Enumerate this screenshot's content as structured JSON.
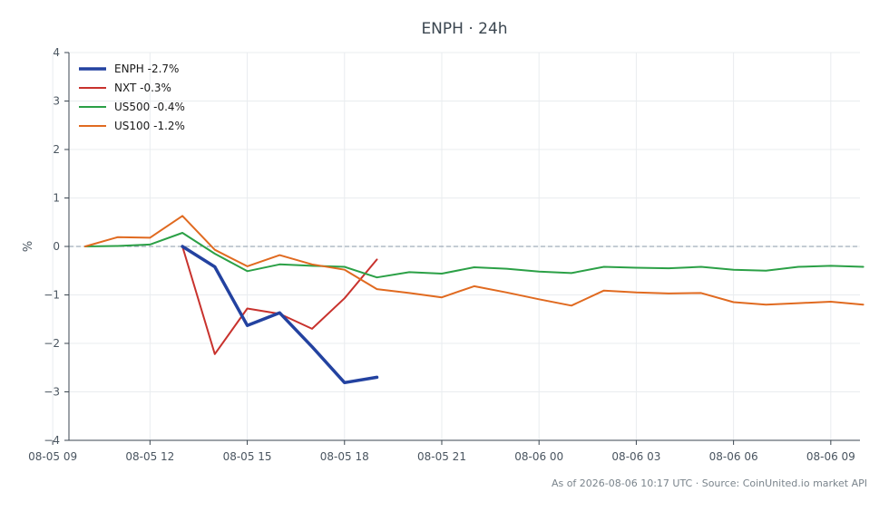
{
  "chart_data": {
    "type": "line",
    "title": "ENPH · 24h",
    "ylabel": "%",
    "xlabel": "",
    "ylim": [
      -4,
      4
    ],
    "xlim": [
      9.5,
      33.9
    ],
    "x_ticks": [
      {
        "value": 9.0,
        "label": "08-05 09"
      },
      {
        "value": 12.0,
        "label": "08-05 12"
      },
      {
        "value": 15.0,
        "label": "08-05 15"
      },
      {
        "value": 18.0,
        "label": "08-05 18"
      },
      {
        "value": 21.0,
        "label": "08-05 21"
      },
      {
        "value": 24.0,
        "label": "08-06 00"
      },
      {
        "value": 27.0,
        "label": "08-06 03"
      },
      {
        "value": 30.0,
        "label": "08-06 06"
      },
      {
        "value": 33.0,
        "label": "08-06 09"
      }
    ],
    "y_ticks": [
      {
        "value": -4,
        "label": "−4"
      },
      {
        "value": -3,
        "label": "−3"
      },
      {
        "value": -2,
        "label": "−2"
      },
      {
        "value": -1,
        "label": "−1"
      },
      {
        "value": 0,
        "label": "0"
      },
      {
        "value": 1,
        "label": "1"
      },
      {
        "value": 2,
        "label": "2"
      },
      {
        "value": 3,
        "label": "3"
      },
      {
        "value": 4,
        "label": "4"
      }
    ],
    "grid": true,
    "zero_line": true,
    "legend_position": "top-left",
    "series": [
      {
        "name": "ENPH -2.7%",
        "color": "#2342a0",
        "width": 3.5,
        "x": [
          13.0,
          14.0,
          15.0,
          16.0,
          17.0,
          18.0,
          19.0
        ],
        "y": [
          0.0,
          -0.42,
          -1.63,
          -1.37,
          -2.07,
          -2.81,
          -2.7
        ]
      },
      {
        "name": "NXT -0.3%",
        "color": "#c8322d",
        "width": 2,
        "x": [
          13.0,
          14.0,
          15.0,
          16.0,
          17.0,
          18.0,
          19.0
        ],
        "y": [
          0.0,
          -2.22,
          -1.28,
          -1.39,
          -1.7,
          -1.07,
          -0.27
        ]
      },
      {
        "name": "US500 -0.4%",
        "color": "#2ba046",
        "width": 2,
        "x": [
          10.0,
          11.0,
          12.0,
          13.0,
          14.0,
          15.0,
          16.0,
          17.0,
          18.0,
          19.0,
          20.0,
          21.0,
          22.0,
          23.0,
          24.0,
          25.0,
          26.0,
          27.0,
          28.0,
          29.0,
          30.0,
          31.0,
          32.0,
          33.0,
          34.0
        ],
        "y": [
          0.0,
          0.01,
          0.04,
          0.28,
          -0.15,
          -0.51,
          -0.37,
          -0.4,
          -0.42,
          -0.64,
          -0.53,
          -0.56,
          -0.43,
          -0.46,
          -0.52,
          -0.55,
          -0.42,
          -0.44,
          -0.45,
          -0.42,
          -0.48,
          -0.5,
          -0.42,
          -0.4,
          -0.42
        ]
      },
      {
        "name": "US100 -1.2%",
        "color": "#e06a20",
        "width": 2,
        "x": [
          10.0,
          11.0,
          12.0,
          13.0,
          14.0,
          15.0,
          16.0,
          17.0,
          18.0,
          19.0,
          20.0,
          21.0,
          22.0,
          23.0,
          24.0,
          25.0,
          26.0,
          27.0,
          28.0,
          29.0,
          30.0,
          31.0,
          32.0,
          33.0,
          34.0
        ],
        "y": [
          0.0,
          0.19,
          0.18,
          0.63,
          -0.07,
          -0.41,
          -0.18,
          -0.37,
          -0.48,
          -0.88,
          -0.96,
          -1.05,
          -0.82,
          -0.95,
          -1.09,
          -1.22,
          -0.91,
          -0.95,
          -0.97,
          -0.96,
          -1.15,
          -1.2,
          -1.17,
          -1.14,
          -1.2
        ]
      }
    ],
    "footer": "As of 2026-08-06 10:17 UTC · Source: CoinUnited.io market API"
  }
}
